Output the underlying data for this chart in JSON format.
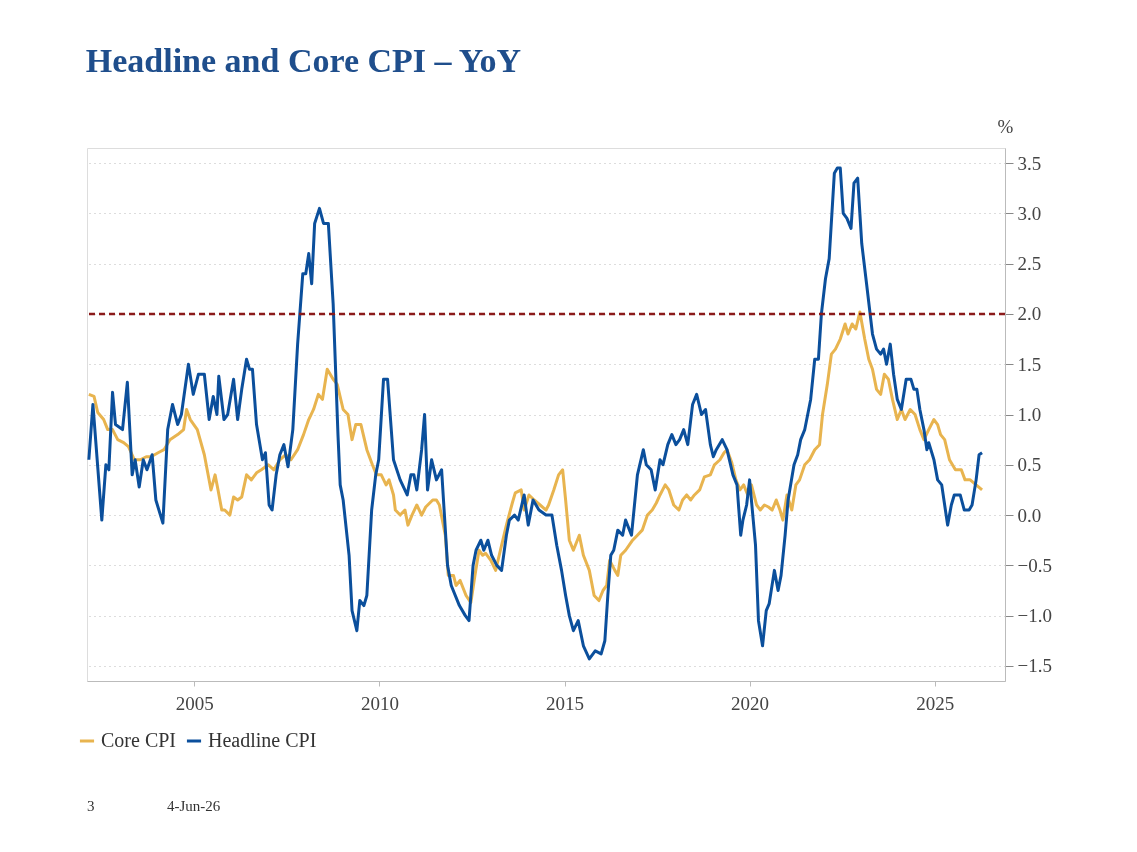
{
  "chart_data": {
    "type": "line",
    "title": "Headline and Core CPI – YoY",
    "ylabel": "%",
    "xlim": [
      2002.1,
      2026.9
    ],
    "xticks": [
      2005,
      2010,
      2015,
      2020,
      2025
    ],
    "ylim": [
      -1.65,
      3.65
    ],
    "yticks": [
      {
        "value": -1.5,
        "label": "−1.5"
      },
      {
        "value": -1.0,
        "label": "−1.0"
      },
      {
        "value": -0.5,
        "label": "−0.5"
      },
      {
        "value": 0,
        "label": "0.0"
      },
      {
        "value": 0.5,
        "label": "0.5"
      },
      {
        "value": 1.0,
        "label": "1.0"
      },
      {
        "value": 1.5,
        "label": "1.5"
      },
      {
        "value": 2.0,
        "label": "2.0"
      },
      {
        "value": 2.5,
        "label": "2.5"
      },
      {
        "value": 3.0,
        "label": "3.0"
      },
      {
        "value": 3.5,
        "label": "3.5"
      }
    ],
    "grid": "y",
    "legend": "bottom left",
    "marker": "none",
    "line_style": "solid",
    "ref_lines": [
      {
        "axis": "y",
        "value": 2.0,
        "color": "#8b1a1a",
        "line_style": "dashed"
      }
    ],
    "annotations": [
      "3",
      "4-Jun-26"
    ],
    "series": [
      {
        "name": "Core CPI",
        "color": "#e8b44f",
        "x": [
          2002.15,
          2002.29,
          2002.39,
          2002.55,
          2002.66,
          2002.79,
          2002.93,
          2003.09,
          2003.22,
          2003.38,
          2003.54,
          2003.7,
          2003.83,
          2004.02,
          2004.18,
          2004.34,
          2004.55,
          2004.71,
          2004.79,
          2004.89,
          2005.08,
          2005.27,
          2005.45,
          2005.56,
          2005.64,
          2005.74,
          2005.82,
          2005.96,
          2006.06,
          2006.17,
          2006.28,
          2006.41,
          2006.54,
          2006.68,
          2006.81,
          2007.0,
          2007.15,
          2007.31,
          2007.47,
          2007.61,
          2007.79,
          2007.95,
          2008.09,
          2008.22,
          2008.35,
          2008.46,
          2008.59,
          2008.75,
          2008.86,
          2009.02,
          2009.15,
          2009.26,
          2009.36,
          2009.5,
          2009.66,
          2009.81,
          2009.92,
          2010.05,
          2010.18,
          2010.26,
          2010.38,
          2010.43,
          2010.56,
          2010.69,
          2010.77,
          2010.88,
          2011.01,
          2011.14,
          2011.25,
          2011.44,
          2011.54,
          2011.62,
          2011.78,
          2011.86,
          2012.0,
          2012.07,
          2012.18,
          2012.34,
          2012.47,
          2012.58,
          2012.69,
          2012.79,
          2012.87,
          2013.01,
          2013.14,
          2013.3,
          2013.43,
          2013.59,
          2013.67,
          2013.83,
          2013.91,
          2014.04,
          2014.18,
          2014.34,
          2014.5,
          2014.57,
          2014.71,
          2014.84,
          2014.95,
          2015.03,
          2015.13,
          2015.24,
          2015.4,
          2015.51,
          2015.67,
          2015.8,
          2015.93,
          2016.04,
          2016.14,
          2016.22,
          2016.36,
          2016.44,
          2016.52,
          2016.65,
          2016.84,
          2016.97,
          2017.1,
          2017.24,
          2017.37,
          2017.48,
          2017.58,
          2017.72,
          2017.82,
          2017.95,
          2018.09,
          2018.19,
          2018.3,
          2018.41,
          2018.51,
          2018.65,
          2018.78,
          2018.94,
          2019.05,
          2019.2,
          2019.31,
          2019.39,
          2019.52,
          2019.63,
          2019.74,
          2019.84,
          2019.95,
          2020.05,
          2020.19,
          2020.29,
          2020.4,
          2020.51,
          2020.61,
          2020.72,
          2020.82,
          2020.9,
          2021.01,
          2021.14,
          2021.25,
          2021.35,
          2021.49,
          2021.62,
          2021.76,
          2021.89,
          2021.97,
          2022.1,
          2022.21,
          2022.32,
          2022.45,
          2022.58,
          2022.66,
          2022.77,
          2022.87,
          2022.98,
          2023.11,
          2023.22,
          2023.32,
          2023.43,
          2023.54,
          2023.64,
          2023.75,
          2023.86,
          2023.99,
          2024.1,
          2024.2,
          2024.34,
          2024.47,
          2024.6,
          2024.71,
          2024.84,
          2024.98,
          2025.08,
          2025.16,
          2025.27,
          2025.4,
          2025.56,
          2025.72,
          2025.82,
          2025.96,
          2026.12,
          2026.28
        ],
        "values": [
          1.2,
          1.18,
          1.02,
          0.95,
          0.85,
          0.85,
          0.75,
          0.72,
          0.68,
          0.55,
          0.55,
          0.58,
          0.58,
          0.62,
          0.65,
          0.75,
          0.8,
          0.85,
          1.05,
          0.95,
          0.85,
          0.6,
          0.25,
          0.4,
          0.25,
          0.05,
          0.05,
          0.0,
          0.18,
          0.15,
          0.18,
          0.4,
          0.35,
          0.42,
          0.45,
          0.5,
          0.45,
          0.55,
          0.6,
          0.55,
          0.65,
          0.8,
          0.95,
          1.05,
          1.2,
          1.15,
          1.45,
          1.35,
          1.3,
          1.05,
          1.0,
          0.75,
          0.9,
          0.9,
          0.65,
          0.5,
          0.4,
          0.4,
          0.3,
          0.35,
          0.2,
          0.05,
          0.0,
          0.05,
          -0.1,
          0.0,
          0.1,
          0.0,
          0.08,
          0.15,
          0.15,
          0.1,
          -0.2,
          -0.6,
          -0.6,
          -0.7,
          -0.65,
          -0.8,
          -0.87,
          -0.6,
          -0.35,
          -0.4,
          -0.38,
          -0.45,
          -0.55,
          -0.3,
          -0.1,
          0.12,
          0.22,
          0.25,
          0.05,
          0.2,
          0.15,
          0.1,
          0.05,
          0.1,
          0.25,
          0.4,
          0.45,
          0.15,
          -0.25,
          -0.35,
          -0.2,
          -0.4,
          -0.55,
          -0.8,
          -0.85,
          -0.75,
          -0.7,
          -0.45,
          -0.55,
          -0.6,
          -0.4,
          -0.35,
          -0.25,
          -0.2,
          -0.15,
          0.0,
          0.05,
          0.12,
          0.2,
          0.3,
          0.25,
          0.1,
          0.05,
          0.15,
          0.2,
          0.15,
          0.2,
          0.25,
          0.38,
          0.4,
          0.5,
          0.55,
          0.62,
          0.65,
          0.52,
          0.35,
          0.25,
          0.3,
          0.2,
          0.3,
          0.1,
          0.05,
          0.1,
          0.08,
          0.05,
          0.15,
          0.05,
          -0.05,
          0.2,
          0.05,
          0.3,
          0.35,
          0.5,
          0.55,
          0.65,
          0.7,
          1.0,
          1.3,
          1.6,
          1.65,
          1.75,
          1.9,
          1.8,
          1.9,
          1.85,
          2.02,
          1.75,
          1.55,
          1.45,
          1.25,
          1.2,
          1.4,
          1.35,
          1.15,
          0.95,
          1.05,
          0.95,
          1.05,
          1.0,
          0.85,
          0.75,
          0.85,
          0.95,
          0.9,
          0.8,
          0.75,
          0.55,
          0.45,
          0.45,
          0.35,
          0.35,
          0.3,
          0.25
        ]
      },
      {
        "name": "Headline CPI",
        "color": "#0b4f9c",
        "x": [
          2002.15,
          2002.26,
          2002.5,
          2002.61,
          2002.69,
          2002.79,
          2002.87,
          2003.06,
          2003.19,
          2003.32,
          2003.4,
          2003.51,
          2003.62,
          2003.72,
          2003.86,
          2003.96,
          2004.15,
          2004.28,
          2004.41,
          2004.55,
          2004.65,
          2004.84,
          2004.97,
          2005.11,
          2005.27,
          2005.4,
          2005.51,
          2005.61,
          2005.66,
          2005.8,
          2005.9,
          2006.06,
          2006.17,
          2006.28,
          2006.41,
          2006.49,
          2006.57,
          2006.68,
          2006.84,
          2006.92,
          2007.02,
          2007.1,
          2007.21,
          2007.31,
          2007.42,
          2007.53,
          2007.66,
          2007.79,
          2007.93,
          2008.01,
          2008.09,
          2008.17,
          2008.25,
          2008.38,
          2008.49,
          2008.62,
          2008.75,
          2008.88,
          2008.94,
          2009.02,
          2009.18,
          2009.26,
          2009.39,
          2009.47,
          2009.58,
          2009.66,
          2009.79,
          2009.9,
          2009.98,
          2010.11,
          2010.22,
          2010.38,
          2010.56,
          2010.75,
          2010.85,
          2010.93,
          2011.01,
          2011.14,
          2011.22,
          2011.3,
          2011.41,
          2011.54,
          2011.68,
          2011.84,
          2011.94,
          2012.16,
          2012.32,
          2012.42,
          2012.53,
          2012.61,
          2012.74,
          2012.82,
          2012.93,
          2013.03,
          2013.17,
          2013.3,
          2013.43,
          2013.51,
          2013.65,
          2013.75,
          2013.91,
          2014.02,
          2014.15,
          2014.31,
          2014.5,
          2014.66,
          2014.79,
          2014.92,
          2015.03,
          2015.13,
          2015.24,
          2015.37,
          2015.51,
          2015.67,
          2015.83,
          2015.99,
          2016.09,
          2016.17,
          2016.25,
          2016.33,
          2016.44,
          2016.57,
          2016.65,
          2016.81,
          2016.97,
          2017.13,
          2017.21,
          2017.34,
          2017.45,
          2017.58,
          2017.66,
          2017.79,
          2017.9,
          2018.01,
          2018.11,
          2018.22,
          2018.33,
          2018.46,
          2018.57,
          2018.7,
          2018.81,
          2018.94,
          2019.02,
          2019.1,
          2019.26,
          2019.39,
          2019.55,
          2019.66,
          2019.76,
          2019.82,
          2019.92,
          2020.0,
          2020.16,
          2020.24,
          2020.35,
          2020.45,
          2020.53,
          2020.67,
          2020.77,
          2020.85,
          2020.96,
          2021.04,
          2021.2,
          2021.3,
          2021.38,
          2021.49,
          2021.65,
          2021.76,
          2021.86,
          2021.94,
          2022.05,
          2022.15,
          2022.29,
          2022.37,
          2022.45,
          2022.53,
          2022.63,
          2022.74,
          2022.82,
          2022.92,
          2023.03,
          2023.16,
          2023.32,
          2023.43,
          2023.54,
          2023.62,
          2023.7,
          2023.8,
          2023.89,
          2023.99,
          2024.1,
          2024.23,
          2024.36,
          2024.44,
          2024.52,
          2024.6,
          2024.71,
          2024.79,
          2024.84,
          2024.98,
          2025.08,
          2025.19,
          2025.29,
          2025.35,
          2025.45,
          2025.53,
          2025.61,
          2025.69,
          2025.8,
          2025.93,
          2026.01,
          2026.12,
          2026.2,
          2026.28
        ],
        "values": [
          0.55,
          1.1,
          -0.05,
          0.5,
          0.45,
          1.22,
          0.9,
          0.85,
          1.32,
          0.4,
          0.55,
          0.28,
          0.55,
          0.45,
          0.6,
          0.15,
          -0.08,
          0.85,
          1.1,
          0.9,
          1.0,
          1.5,
          1.2,
          1.4,
          1.4,
          0.95,
          1.18,
          1.0,
          1.38,
          0.95,
          1.0,
          1.35,
          0.95,
          1.25,
          1.55,
          1.45,
          1.45,
          0.9,
          0.55,
          0.62,
          0.1,
          0.05,
          0.4,
          0.6,
          0.7,
          0.48,
          0.85,
          1.7,
          2.4,
          2.4,
          2.6,
          2.3,
          2.9,
          3.05,
          2.9,
          2.9,
          2.1,
          0.8,
          0.3,
          0.15,
          -0.4,
          -0.95,
          -1.15,
          -0.85,
          -0.9,
          -0.8,
          0.05,
          0.4,
          0.55,
          1.35,
          1.35,
          0.55,
          0.35,
          0.2,
          0.4,
          0.4,
          0.25,
          0.65,
          1.0,
          0.25,
          0.55,
          0.35,
          0.45,
          -0.5,
          -0.7,
          -0.9,
          -1.0,
          -1.05,
          -0.5,
          -0.35,
          -0.25,
          -0.35,
          -0.25,
          -0.4,
          -0.5,
          -0.55,
          -0.2,
          -0.05,
          0.0,
          -0.05,
          0.2,
          -0.1,
          0.15,
          0.05,
          0.0,
          0.0,
          -0.3,
          -0.55,
          -0.8,
          -1.0,
          -1.15,
          -1.05,
          -1.3,
          -1.43,
          -1.35,
          -1.38,
          -1.25,
          -0.8,
          -0.4,
          -0.35,
          -0.15,
          -0.2,
          -0.05,
          -0.2,
          0.4,
          0.65,
          0.5,
          0.45,
          0.25,
          0.55,
          0.5,
          0.7,
          0.8,
          0.7,
          0.75,
          0.85,
          0.7,
          1.1,
          1.2,
          1.0,
          1.05,
          0.7,
          0.58,
          0.65,
          0.75,
          0.65,
          0.4,
          0.3,
          -0.2,
          -0.05,
          0.1,
          0.35,
          -0.3,
          -1.05,
          -1.3,
          -0.95,
          -0.88,
          -0.55,
          -0.75,
          -0.6,
          -0.2,
          0.15,
          0.5,
          0.6,
          0.75,
          0.85,
          1.15,
          1.55,
          1.55,
          2.0,
          2.35,
          2.55,
          3.4,
          3.45,
          3.45,
          3.0,
          2.95,
          2.85,
          3.3,
          3.35,
          2.7,
          2.3,
          1.8,
          1.65,
          1.6,
          1.65,
          1.5,
          1.7,
          1.4,
          1.15,
          1.05,
          1.35,
          1.35,
          1.25,
          1.25,
          1.05,
          0.85,
          0.65,
          0.72,
          0.55,
          0.35,
          0.3,
          0.05,
          -0.1,
          0.1,
          0.2,
          0.2,
          0.2,
          0.05,
          0.05,
          0.1,
          0.35,
          0.6,
          0.62
        ]
      }
    ]
  }
}
